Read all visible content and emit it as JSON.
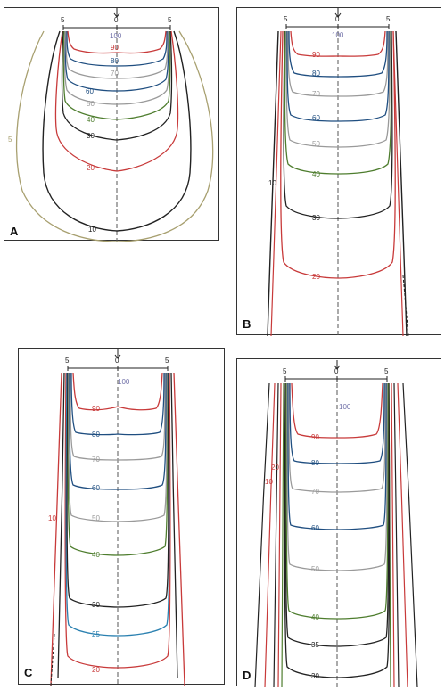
{
  "panels": [
    {
      "label": "A",
      "scale_ticks": [
        "5",
        "0",
        "5"
      ],
      "contours": [
        {
          "value": "100",
          "color": "#7070a8"
        },
        {
          "value": "90",
          "color": "#c83a3a"
        },
        {
          "value": "80",
          "color": "#1f4e80"
        },
        {
          "value": "70",
          "color": "#9a9a9a"
        },
        {
          "value": "60",
          "color": "#1f4e80"
        },
        {
          "value": "50",
          "color": "#9a9a9a"
        },
        {
          "value": "40",
          "color": "#4e7d2e"
        },
        {
          "value": "30",
          "color": "#222222"
        },
        {
          "value": "20",
          "color": "#c83a3a"
        },
        {
          "value": "10",
          "color": "#222222"
        },
        {
          "value": "5",
          "color": "#a8a070"
        }
      ]
    },
    {
      "label": "B",
      "scale_ticks": [
        "5",
        "0",
        "5"
      ],
      "contours": [
        {
          "value": "100",
          "color": "#7070a8"
        },
        {
          "value": "90",
          "color": "#c83a3a"
        },
        {
          "value": "80",
          "color": "#1f4e80"
        },
        {
          "value": "70",
          "color": "#9a9a9a"
        },
        {
          "value": "60",
          "color": "#1f4e80"
        },
        {
          "value": "50",
          "color": "#9a9a9a"
        },
        {
          "value": "40",
          "color": "#4e7d2e"
        },
        {
          "value": "30",
          "color": "#222222"
        },
        {
          "value": "20",
          "color": "#c83a3a"
        },
        {
          "value": "10",
          "color": "#222222"
        }
      ]
    },
    {
      "label": "C",
      "scale_ticks": [
        "5",
        "0",
        "5"
      ],
      "contours": [
        {
          "value": "100",
          "color": "#7070a8"
        },
        {
          "value": "90",
          "color": "#c83a3a"
        },
        {
          "value": "80",
          "color": "#1f4e80"
        },
        {
          "value": "70",
          "color": "#9a9a9a"
        },
        {
          "value": "60",
          "color": "#1f4e80"
        },
        {
          "value": "50",
          "color": "#9a9a9a"
        },
        {
          "value": "40",
          "color": "#4e7d2e"
        },
        {
          "value": "30",
          "color": "#222222"
        },
        {
          "value": "25",
          "color": "#2a80b0"
        },
        {
          "value": "20",
          "color": "#c83a3a"
        },
        {
          "value": "10",
          "color": "#c83a3a"
        }
      ]
    },
    {
      "label": "D",
      "scale_ticks": [
        "5",
        "0",
        "5"
      ],
      "contours": [
        {
          "value": "100",
          "color": "#7070a8"
        },
        {
          "value": "90",
          "color": "#c83a3a"
        },
        {
          "value": "80",
          "color": "#1f4e80"
        },
        {
          "value": "70",
          "color": "#9a9a9a"
        },
        {
          "value": "60",
          "color": "#1f4e80"
        },
        {
          "value": "50",
          "color": "#9a9a9a"
        },
        {
          "value": "40",
          "color": "#4e7d2e"
        },
        {
          "value": "35",
          "color": "#222222"
        },
        {
          "value": "30",
          "color": "#222222"
        },
        {
          "value": "20",
          "color": "#c83a3a"
        },
        {
          "value": "10",
          "color": "#c83a3a"
        }
      ]
    }
  ]
}
